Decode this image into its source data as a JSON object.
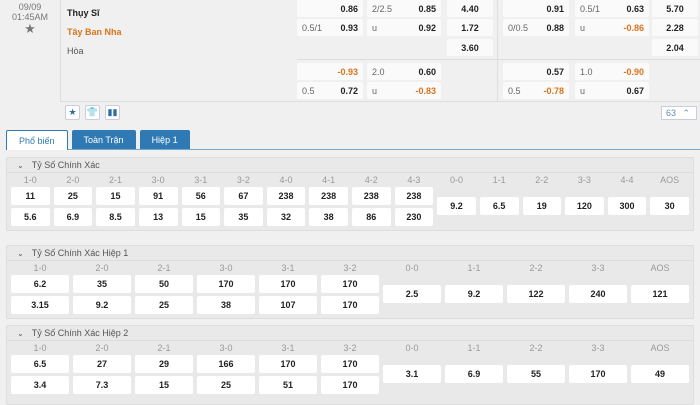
{
  "match": {
    "date": "09/09",
    "time": "01:45AM",
    "home": "Thụy Sĩ",
    "away": "Tây Ban Nha",
    "draw": "Hòa"
  },
  "odds": {
    "rows": [
      [
        [
          "",
          "0.86"
        ],
        [
          "2/2.5",
          "0.85"
        ],
        [
          "4.40"
        ],
        [
          "",
          "0.91"
        ],
        [
          "0.5/1",
          "0.63"
        ],
        [
          "5.70"
        ]
      ],
      [
        [
          "0.5/1",
          "0.93"
        ],
        [
          "u",
          "0.92"
        ],
        [
          "1.72"
        ],
        [
          "0/0.5",
          "0.88"
        ],
        [
          "u",
          "-0.86"
        ],
        [
          "2.28"
        ]
      ],
      [
        null,
        null,
        [
          "3.60"
        ],
        null,
        null,
        [
          "2.04"
        ]
      ],
      [
        [
          "",
          "-0.93"
        ],
        [
          "2.0",
          "0.60"
        ],
        null,
        [
          "",
          "0.57"
        ],
        [
          "1.0",
          "-0.90"
        ],
        null
      ],
      [
        [
          "0.5",
          "0.72"
        ],
        [
          "u",
          "-0.83"
        ],
        null,
        [
          "0.5",
          "-0.78"
        ],
        [
          "u",
          "0.67"
        ],
        null
      ]
    ],
    "negative_color": "#d9741c"
  },
  "toolbar": {
    "icons": [
      "star-icon",
      "jersey-icon",
      "stats-icon"
    ],
    "more_count": "63"
  },
  "tabs": [
    {
      "label": "Phổ biến",
      "active": true
    },
    {
      "label": "Toàn Trận"
    },
    {
      "label": "Hiệp 1"
    }
  ],
  "sections": [
    {
      "title": "Tỷ Số Chính Xác",
      "cols": [
        {
          "l": "1-0",
          "v": [
            "11",
            "5.6"
          ]
        },
        {
          "l": "2-0",
          "v": [
            "25",
            "6.9"
          ]
        },
        {
          "l": "2-1",
          "v": [
            "15",
            "8.5"
          ]
        },
        {
          "l": "3-0",
          "v": [
            "91",
            "13"
          ]
        },
        {
          "l": "3-1",
          "v": [
            "56",
            "15"
          ]
        },
        {
          "l": "3-2",
          "v": [
            "67",
            "35"
          ]
        },
        {
          "l": "4-0",
          "v": [
            "238",
            "32"
          ]
        },
        {
          "l": "4-1",
          "v": [
            "238",
            "38"
          ]
        },
        {
          "l": "4-2",
          "v": [
            "238",
            "86"
          ]
        },
        {
          "l": "4-3",
          "v": [
            "238",
            "230"
          ]
        },
        {
          "l": "0-0",
          "v": [
            "9.2"
          ]
        },
        {
          "l": "1-1",
          "v": [
            "6.5"
          ]
        },
        {
          "l": "2-2",
          "v": [
            "19"
          ]
        },
        {
          "l": "3-3",
          "v": [
            "120"
          ]
        },
        {
          "l": "4-4",
          "v": [
            "300"
          ]
        },
        {
          "l": "AOS",
          "v": [
            "30"
          ]
        }
      ]
    },
    {
      "title": "Tỷ Số Chính Xác Hiệp 1",
      "cols": [
        {
          "l": "1-0",
          "v": [
            "6.2",
            "3.15"
          ]
        },
        {
          "l": "2-0",
          "v": [
            "35",
            "9.2"
          ]
        },
        {
          "l": "2-1",
          "v": [
            "50",
            "25"
          ]
        },
        {
          "l": "3-0",
          "v": [
            "170",
            "38"
          ]
        },
        {
          "l": "3-1",
          "v": [
            "170",
            "107"
          ]
        },
        {
          "l": "3-2",
          "v": [
            "170",
            "170"
          ]
        },
        {
          "l": "0-0",
          "v": [
            "2.5"
          ]
        },
        {
          "l": "1-1",
          "v": [
            "9.2"
          ]
        },
        {
          "l": "2-2",
          "v": [
            "122"
          ]
        },
        {
          "l": "3-3",
          "v": [
            "240"
          ]
        },
        {
          "l": "AOS",
          "v": [
            "121"
          ]
        }
      ]
    },
    {
      "title": "Tỷ Số Chính Xác Hiệp 2",
      "cols": [
        {
          "l": "1-0",
          "v": [
            "6.5",
            "3.4"
          ]
        },
        {
          "l": "2-0",
          "v": [
            "27",
            "7.3"
          ]
        },
        {
          "l": "2-1",
          "v": [
            "29",
            "15"
          ]
        },
        {
          "l": "3-0",
          "v": [
            "166",
            "25"
          ]
        },
        {
          "l": "3-1",
          "v": [
            "170",
            "51"
          ]
        },
        {
          "l": "3-2",
          "v": [
            "170",
            "170"
          ]
        },
        {
          "l": "0-0",
          "v": [
            "3.1"
          ]
        },
        {
          "l": "1-1",
          "v": [
            "6.9"
          ]
        },
        {
          "l": "2-2",
          "v": [
            "55"
          ]
        },
        {
          "l": "3-3",
          "v": [
            "170"
          ]
        },
        {
          "l": "AOS",
          "v": [
            "49"
          ]
        }
      ]
    }
  ]
}
